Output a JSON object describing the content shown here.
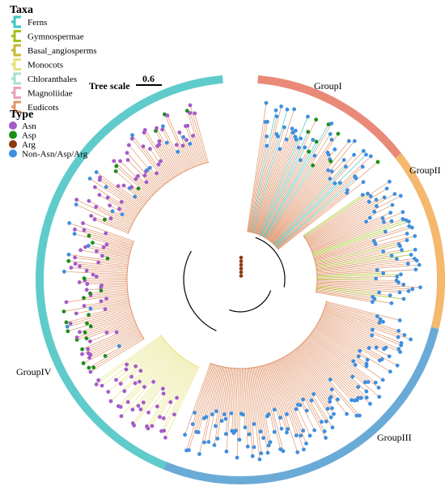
{
  "legend": {
    "taxa_title": "Taxa",
    "taxa": [
      {
        "name": "Ferns",
        "color": "#3cc6c0"
      },
      {
        "name": "Gymnospermae",
        "color": "#a6c01c"
      },
      {
        "name": "Basal_angiosperms",
        "color": "#c9b633"
      },
      {
        "name": "Monocots",
        "color": "#e5e27a"
      },
      {
        "name": "Chloranthales",
        "color": "#a9e0cf"
      },
      {
        "name": "Magnoliidae",
        "color": "#e9a3b6"
      },
      {
        "name": "Eudicots",
        "color": "#e0946a"
      }
    ],
    "type_title": "Type",
    "types": [
      {
        "name": "Asn",
        "color": "#a45cc9"
      },
      {
        "name": "Asp",
        "color": "#1a8f1a"
      },
      {
        "name": "Arg",
        "color": "#8b3a12"
      },
      {
        "name": "Non-Asn/Asp/Arg",
        "color": "#3f8fe0"
      }
    ]
  },
  "tree_scale": {
    "label": "Tree scale",
    "value": "0.6"
  },
  "groups": [
    {
      "name": "GroupI",
      "color": "#e98a78",
      "start_deg": 5,
      "end_deg": 52
    },
    {
      "name": "GroupII",
      "color": "#f4b86e",
      "start_deg": 52,
      "end_deg": 104
    },
    {
      "name": "GroupIII",
      "color": "#6aaad6",
      "start_deg": 104,
      "end_deg": 202
    },
    {
      "name": "GroupIV",
      "color": "#5fcbcb",
      "start_deg": 202,
      "end_deg": 355
    }
  ]
}
